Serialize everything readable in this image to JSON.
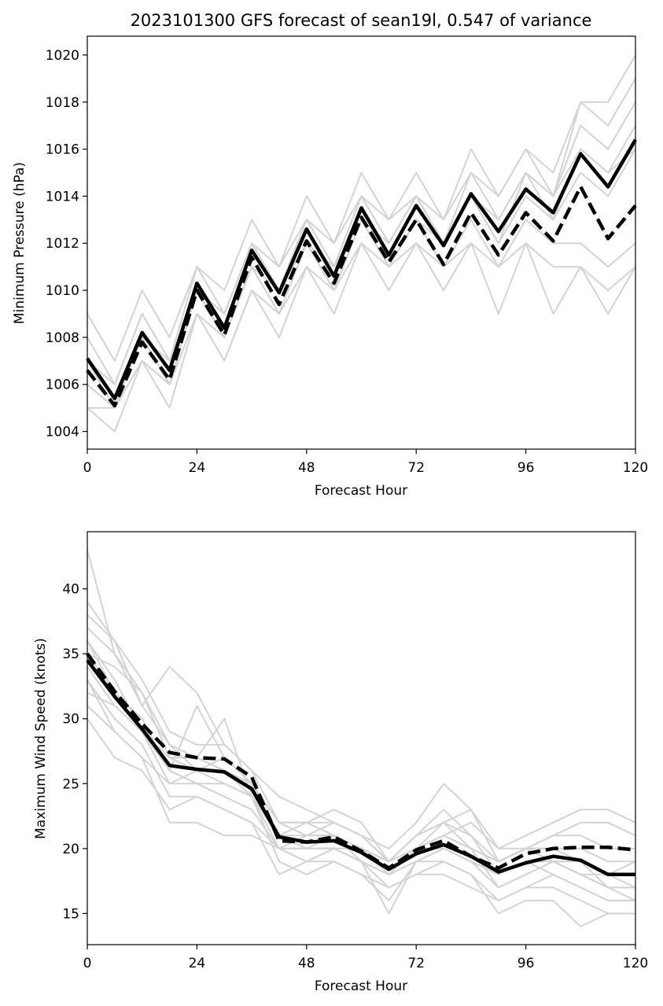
{
  "chart_data": [
    {
      "type": "line",
      "title": "2023101300 GFS forecast of sean19l, 0.547 of variance",
      "xlabel": "Forecast Hour",
      "ylabel": "Minimum Pressure (hPa)",
      "xlim": [
        0,
        120
      ],
      "ylim": [
        1003.25,
        1020.8
      ],
      "xticks": [
        0,
        24,
        48,
        72,
        96,
        120
      ],
      "yticks": [
        1004,
        1006,
        1008,
        1010,
        1012,
        1014,
        1016,
        1018,
        1020
      ],
      "grid": false,
      "x": [
        0,
        6,
        12,
        18,
        24,
        30,
        36,
        42,
        48,
        54,
        60,
        66,
        72,
        78,
        84,
        90,
        96,
        102,
        108,
        114,
        120
      ],
      "series": [
        {
          "style": "solid-black",
          "values": [
            1007.1,
            1005.4,
            1008.2,
            1006.6,
            1010.3,
            1008.4,
            1011.7,
            1009.9,
            1012.6,
            1010.6,
            1013.5,
            1011.5,
            1013.6,
            1011.9,
            1014.1,
            1012.5,
            1014.3,
            1013.3,
            1015.8,
            1014.4,
            1016.4
          ]
        },
        {
          "style": "dashed-black",
          "values": [
            1006.6,
            1005.1,
            1007.8,
            1006.2,
            1010.0,
            1008.1,
            1011.4,
            1009.4,
            1012.1,
            1010.3,
            1013.1,
            1011.2,
            1013.0,
            1011.1,
            1013.3,
            1011.5,
            1013.3,
            1012.1,
            1014.4,
            1012.2,
            1013.6
          ]
        },
        {
          "style": "gray",
          "values": [
            1009,
            1007,
            1010,
            1008,
            1011,
            1010,
            1013,
            1011,
            1014,
            1012,
            1015,
            1013,
            1015,
            1013,
            1016,
            1014,
            1016,
            1015,
            1018,
            1018,
            1020
          ]
        },
        {
          "style": "gray",
          "values": [
            1008,
            1006,
            1009,
            1007,
            1011,
            1009,
            1012,
            1011,
            1013,
            1012,
            1014,
            1013,
            1014,
            1013,
            1015,
            1014,
            1016,
            1014,
            1018,
            1017,
            1019
          ]
        },
        {
          "style": "gray",
          "values": [
            1007,
            1006,
            1009,
            1007,
            1010,
            1009,
            1012,
            1010,
            1013,
            1011,
            1014,
            1012,
            1014,
            1012,
            1015,
            1013,
            1015,
            1014,
            1017,
            1016,
            1018
          ]
        },
        {
          "style": "gray",
          "values": [
            1007,
            1005,
            1008,
            1007,
            1010,
            1009,
            1012,
            1010,
            1013,
            1011,
            1014,
            1012,
            1014,
            1012,
            1014,
            1013,
            1015,
            1014,
            1016,
            1015,
            1017
          ]
        },
        {
          "style": "gray",
          "values": [
            1006,
            1005,
            1008,
            1006,
            1010,
            1008,
            1011,
            1010,
            1012,
            1011,
            1013,
            1012,
            1014,
            1012,
            1014,
            1012,
            1015,
            1013,
            1016,
            1015,
            1016
          ]
        },
        {
          "style": "gray",
          "values": [
            1006,
            1005,
            1008,
            1006,
            1010,
            1008,
            1011,
            1009,
            1012,
            1010,
            1013,
            1011,
            1013,
            1012,
            1014,
            1012,
            1014,
            1013,
            1015,
            1014,
            1016
          ]
        },
        {
          "style": "gray",
          "values": [
            1005,
            1005,
            1007,
            1006,
            1009,
            1008,
            1011,
            1009,
            1012,
            1010,
            1013,
            1011,
            1013,
            1011,
            1013,
            1011,
            1013,
            1012,
            1012,
            1011,
            1012
          ]
        },
        {
          "style": "gray",
          "values": [
            1005,
            1004,
            1007,
            1005,
            1009,
            1007,
            1010,
            1009,
            1011,
            1010,
            1012,
            1011,
            1012,
            1011,
            1012,
            1011,
            1012,
            1011,
            1011,
            1010,
            1011
          ]
        },
        {
          "style": "gray",
          "values": [
            1006,
            1005,
            1007,
            1006,
            1009,
            1007,
            1010,
            1008,
            1011,
            1009,
            1012,
            1010,
            1012,
            1010,
            1012,
            1009,
            1012,
            1009,
            1011,
            1009,
            1011
          ]
        }
      ]
    },
    {
      "type": "line",
      "title": "",
      "xlabel": "Forecast Hour",
      "ylabel": "Maximum Wind Speed (knots)",
      "xlim": [
        0,
        120
      ],
      "ylim": [
        12.6,
        44.4
      ],
      "xticks": [
        0,
        24,
        48,
        72,
        96,
        120
      ],
      "yticks": [
        15,
        20,
        25,
        30,
        35,
        40
      ],
      "grid": false,
      "x": [
        0,
        6,
        12,
        18,
        24,
        30,
        36,
        42,
        48,
        54,
        60,
        66,
        72,
        78,
        84,
        90,
        96,
        102,
        108,
        114,
        120
      ],
      "series": [
        {
          "style": "solid-black",
          "values": [
            34.5,
            31.7,
            29.2,
            26.4,
            26.1,
            25.9,
            24.6,
            20.9,
            20.5,
            20.6,
            19.7,
            18.4,
            19.6,
            20.3,
            19.4,
            18.2,
            18.9,
            19.4,
            19.1,
            18.0,
            18.0
          ]
        },
        {
          "style": "dashed-black",
          "values": [
            35.0,
            32.1,
            29.6,
            27.4,
            27.0,
            26.9,
            25.5,
            20.6,
            20.5,
            20.9,
            19.8,
            18.5,
            19.9,
            20.6,
            19.4,
            18.5,
            19.6,
            20.0,
            20.1,
            20.1,
            19.9
          ]
        },
        {
          "style": "gray",
          "values": [
            43,
            35,
            32,
            28,
            27,
            26,
            25,
            21,
            20,
            20,
            19,
            18,
            19,
            20,
            19,
            18,
            19,
            19,
            19,
            18,
            18
          ]
        },
        {
          "style": "gray",
          "values": [
            39,
            36,
            33,
            29,
            28,
            28,
            26,
            22,
            21,
            21,
            20,
            19,
            20,
            21,
            20,
            19,
            20,
            21,
            21,
            20,
            20
          ]
        },
        {
          "style": "gray",
          "values": [
            38,
            36,
            31,
            34,
            32,
            28,
            26,
            24,
            23,
            22,
            21,
            20,
            22,
            25,
            23,
            20,
            21,
            22,
            23,
            23,
            22
          ]
        },
        {
          "style": "gray",
          "values": [
            37,
            35,
            31,
            28,
            26,
            27,
            25,
            22,
            22,
            23,
            22,
            19,
            20,
            22,
            23,
            19,
            20,
            21,
            22,
            22,
            21
          ]
        },
        {
          "style": "gray",
          "values": [
            36,
            33,
            29,
            27,
            26,
            26,
            24,
            21,
            21,
            21,
            20,
            19,
            21,
            22,
            20,
            19,
            20,
            20,
            20,
            19,
            19
          ]
        },
        {
          "style": "gray",
          "values": [
            35,
            32,
            30,
            26,
            31,
            27,
            25,
            21,
            20,
            20,
            20,
            18,
            20,
            20,
            19,
            18,
            19,
            19,
            18,
            17,
            17
          ]
        },
        {
          "style": "gray",
          "values": [
            35,
            34,
            32,
            27,
            27,
            30,
            24,
            20,
            21,
            22,
            21,
            19,
            20,
            21,
            20,
            17,
            18,
            19,
            19,
            18,
            19
          ]
        },
        {
          "style": "gray",
          "values": [
            34,
            31,
            29,
            25,
            25,
            24,
            23,
            20,
            20,
            20,
            19,
            17,
            18,
            19,
            18,
            16,
            17,
            18,
            17,
            16,
            16
          ]
        },
        {
          "style": "gray",
          "values": [
            33,
            30,
            28,
            24,
            24,
            23,
            22,
            20,
            19,
            19,
            18,
            17,
            18,
            18,
            17,
            16,
            17,
            17,
            16,
            15,
            15
          ]
        },
        {
          "style": "gray",
          "values": [
            32,
            31,
            29,
            26,
            25,
            25,
            24,
            19,
            18,
            19,
            18,
            16,
            19,
            19,
            18,
            15,
            16,
            16,
            14,
            15,
            15
          ]
        },
        {
          "style": "gray",
          "values": [
            31,
            29,
            27,
            22,
            22,
            21,
            21,
            20,
            20,
            21,
            19,
            15,
            19,
            20,
            19,
            17,
            18,
            19,
            18,
            17,
            16
          ]
        },
        {
          "style": "gray",
          "values": [
            30,
            27,
            26,
            23,
            24,
            23,
            22,
            18,
            19,
            20,
            19,
            18,
            20,
            21,
            22,
            20,
            20,
            20,
            19,
            17,
            17
          ]
        },
        {
          "style": "gray",
          "values": [
            33,
            29,
            27,
            25,
            26,
            25,
            24,
            21,
            22,
            22,
            21,
            19,
            21,
            22,
            21,
            18,
            19,
            18,
            17,
            16,
            16
          ]
        },
        {
          "style": "gray",
          "values": [
            36,
            32,
            29,
            27,
            27,
            26,
            25,
            22,
            22,
            21,
            20,
            19,
            21,
            23,
            21,
            19,
            20,
            19,
            18,
            18,
            17
          ]
        }
      ]
    }
  ],
  "colors": {
    "mean_line": "#000000",
    "dashed_line": "#000000",
    "member_lines": "#d3d3d3",
    "axes": "#000000",
    "background": "#ffffff"
  }
}
